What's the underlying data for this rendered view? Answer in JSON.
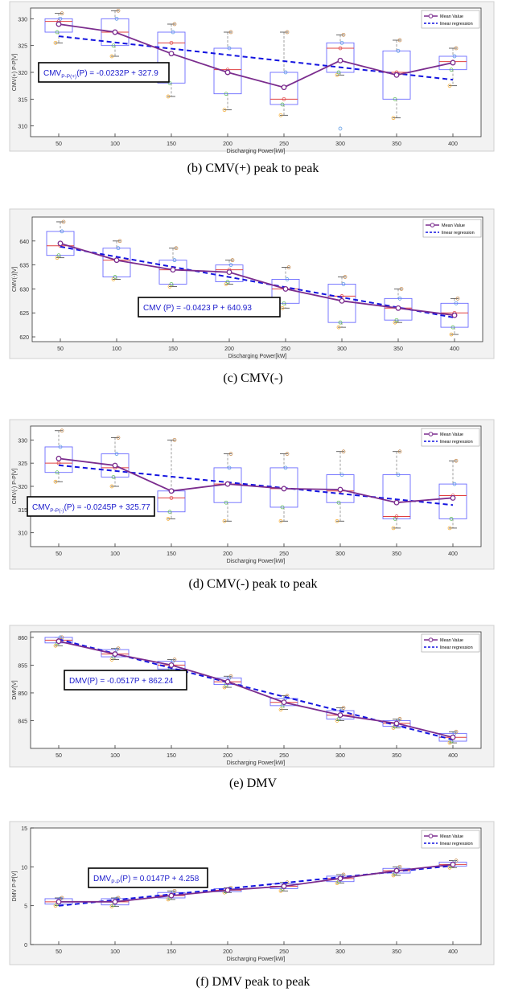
{
  "colors": {
    "mean": "#7b2d8e",
    "regression": "#1414e0",
    "box": "#6b6bff",
    "median": "#e04040",
    "frame": "#d0d0d0",
    "axis": "#333333",
    "eqbox": "#000000",
    "eqtext": "#1a1acc"
  },
  "legend": {
    "mean_label": "Mean Value",
    "regression_label": "linear regression"
  },
  "chart_data": [
    {
      "type": "box",
      "caption": "(b)  CMV(+)  peak  to  peak",
      "ylabel": "CMV(+) P-P[V]",
      "xlabel": "Discharging Power[kW]",
      "ylim": [
        308,
        332
      ],
      "yticks": [
        310,
        315,
        320,
        325,
        330
      ],
      "x": [
        50,
        100,
        150,
        200,
        250,
        300,
        350,
        400
      ],
      "mean": [
        329,
        327.5,
        323.5,
        320,
        317.2,
        322.2,
        319.5,
        321.8
      ],
      "regression": {
        "slope": -0.0232,
        "intercept": 327.9
      },
      "equation": {
        "main": "CMV",
        "sub": "P-P(+)",
        "rest": "(P) = -0.0232P + 327.9"
      },
      "boxes": [
        {
          "q1": 327.5,
          "q3": 330,
          "med": 329.5,
          "lo": 325.5,
          "hi": 331
        },
        {
          "q1": 325,
          "q3": 330,
          "med": 327.5,
          "lo": 323,
          "hi": 331.5
        },
        {
          "q1": 318,
          "q3": 327.5,
          "med": 325.5,
          "lo": 315.5,
          "hi": 329
        },
        {
          "q1": 316,
          "q3": 324.5,
          "med": 320.5,
          "lo": 313,
          "hi": 327.5
        },
        {
          "q1": 314,
          "q3": 320,
          "med": 315,
          "lo": 312,
          "hi": 327.5
        },
        {
          "q1": 320,
          "q3": 325.5,
          "med": 324.5,
          "lo": 319.5,
          "hi": 327
        },
        {
          "q1": 315,
          "q3": 324,
          "med": 320,
          "lo": 311.5,
          "hi": 326
        },
        {
          "q1": 320.5,
          "q3": 323,
          "med": 322,
          "lo": 317.5,
          "hi": 324.5
        }
      ],
      "outliers": [
        [],
        [],
        [],
        [],
        [],
        [
          309.5
        ],
        [],
        []
      ]
    },
    {
      "type": "box",
      "caption": "(c)  CMV(-)",
      "ylabel": "CMV(-)[V]",
      "xlabel": "Discharging Power[kW]",
      "ylim": [
        619,
        645
      ],
      "yticks": [
        620,
        625,
        630,
        635,
        640
      ],
      "x": [
        50,
        100,
        150,
        200,
        250,
        300,
        350,
        400
      ],
      "mean": [
        639.5,
        636,
        634,
        633.5,
        630,
        627.5,
        626,
        624.5
      ],
      "regression": {
        "slope": -0.0423,
        "intercept": 640.93
      },
      "equation": {
        "main": "CMV",
        "sub": "",
        "rest": " (P) = -0.0423 P + 640.93"
      },
      "boxes": [
        {
          "q1": 637,
          "q3": 642,
          "med": 639,
          "lo": 636.5,
          "hi": 644
        },
        {
          "q1": 632.5,
          "q3": 638.5,
          "med": 636,
          "lo": 632,
          "hi": 640
        },
        {
          "q1": 631,
          "q3": 636,
          "med": 634,
          "lo": 630.5,
          "hi": 638.5
        },
        {
          "q1": 631.5,
          "q3": 635,
          "med": 634,
          "lo": 631,
          "hi": 636
        },
        {
          "q1": 627,
          "q3": 632,
          "med": 630,
          "lo": 626,
          "hi": 634.5
        },
        {
          "q1": 623,
          "q3": 631,
          "med": 628.5,
          "lo": 622,
          "hi": 632.5
        },
        {
          "q1": 623.5,
          "q3": 628,
          "med": 626,
          "lo": 623,
          "hi": 630
        },
        {
          "q1": 622,
          "q3": 627,
          "med": 625,
          "lo": 620.5,
          "hi": 628
        }
      ],
      "outliers": [
        [],
        [],
        [],
        [],
        [],
        [],
        [],
        []
      ]
    },
    {
      "type": "box",
      "caption": "(d)  CMV(-)  peak  to  peak",
      "ylabel": "CMV(-) P-P[V]",
      "xlabel": "Discharging Power[kW]",
      "ylim": [
        307,
        333
      ],
      "yticks": [
        310,
        315,
        320,
        325,
        330
      ],
      "x": [
        50,
        100,
        150,
        200,
        250,
        300,
        350,
        400
      ],
      "mean": [
        326,
        324.5,
        319,
        320.5,
        319.5,
        319.3,
        316.5,
        317.5
      ],
      "regression": {
        "slope": -0.0245,
        "intercept": 325.77
      },
      "equation": {
        "main": "CMV",
        "sub": "P-P(-)",
        "rest": "(P) = -0.0245P + 325.77"
      },
      "boxes": [
        {
          "q1": 323,
          "q3": 328.5,
          "med": 325,
          "lo": 321,
          "hi": 332
        },
        {
          "q1": 322,
          "q3": 327,
          "med": 324,
          "lo": 320,
          "hi": 330.5
        },
        {
          "q1": 314.5,
          "q3": 319,
          "med": 317.5,
          "lo": 313,
          "hi": 330
        },
        {
          "q1": 316.5,
          "q3": 324,
          "med": 320.5,
          "lo": 312.5,
          "hi": 327
        },
        {
          "q1": 315.5,
          "q3": 324,
          "med": 319.5,
          "lo": 312.5,
          "hi": 327
        },
        {
          "q1": 316.5,
          "q3": 322.5,
          "med": 319,
          "lo": 312.5,
          "hi": 327.5
        },
        {
          "q1": 313,
          "q3": 322.5,
          "med": 313.5,
          "lo": 311,
          "hi": 327.5
        },
        {
          "q1": 313,
          "q3": 320.5,
          "med": 318,
          "lo": 311,
          "hi": 325.5
        }
      ],
      "outliers": [
        [],
        [],
        [],
        [],
        [],
        [],
        [],
        []
      ]
    },
    {
      "type": "box",
      "caption": "(e)  DMV",
      "ylabel": "DMV[V]",
      "xlabel": "Discharging Power[kW]",
      "ylim": [
        840,
        861
      ],
      "yticks": [
        845,
        850,
        855,
        860
      ],
      "x": [
        50,
        100,
        150,
        200,
        250,
        300,
        350,
        400
      ],
      "mean": [
        859.3,
        857,
        855,
        852,
        848.3,
        846,
        844.5,
        842
      ],
      "regression": {
        "slope": -0.0517,
        "intercept": 862.24
      },
      "equation": {
        "main": "DMV(P) = -0.0517P + 862.24",
        "sub": "",
        "rest": ""
      },
      "boxes": [
        {
          "q1": 859,
          "q3": 860,
          "med": 859.5,
          "lo": 858.5,
          "hi": 860
        },
        {
          "q1": 856.5,
          "q3": 857.8,
          "med": 857,
          "lo": 856,
          "hi": 858
        },
        {
          "q1": 854.3,
          "q3": 855.7,
          "med": 855,
          "lo": 853.8,
          "hi": 856
        },
        {
          "q1": 851.5,
          "q3": 852.7,
          "med": 852,
          "lo": 851,
          "hi": 853
        },
        {
          "q1": 847.7,
          "q3": 849,
          "med": 848.3,
          "lo": 847,
          "hi": 849.5
        },
        {
          "q1": 845.3,
          "q3": 846.8,
          "med": 846,
          "lo": 845,
          "hi": 847.3
        },
        {
          "q1": 844,
          "q3": 845,
          "med": 844.5,
          "lo": 843.7,
          "hi": 845.3
        },
        {
          "q1": 841.3,
          "q3": 842.7,
          "med": 842,
          "lo": 841,
          "hi": 843
        }
      ],
      "outliers": [
        [],
        [],
        [],
        [],
        [],
        [],
        [],
        []
      ]
    },
    {
      "type": "box",
      "caption": "(f)  DMV  peak  to  peak",
      "ylabel": "DMV P-P[V]",
      "xlabel": "Discharging Power[kW]",
      "ylim": [
        0,
        15
      ],
      "yticks": [
        0,
        5,
        10,
        15
      ],
      "x": [
        50,
        100,
        150,
        200,
        250,
        300,
        350,
        400
      ],
      "mean": [
        5.5,
        5.5,
        6.3,
        7,
        7.5,
        8.5,
        9.5,
        10.3
      ],
      "regression": {
        "slope": 0.0147,
        "intercept": 4.258
      },
      "equation": {
        "main": "DMV",
        "sub": "P-P",
        "rest": "(P) = 0.0147P + 4.258"
      },
      "boxes": [
        {
          "q1": 5.2,
          "q3": 5.9,
          "med": 5.5,
          "lo": 5,
          "hi": 6
        },
        {
          "q1": 5.1,
          "q3": 5.9,
          "med": 5.5,
          "lo": 4.9,
          "hi": 6
        },
        {
          "q1": 6,
          "q3": 6.7,
          "med": 6.3,
          "lo": 5.8,
          "hi": 6.9
        },
        {
          "q1": 6.8,
          "q3": 7.2,
          "med": 7,
          "lo": 6.7,
          "hi": 7.3
        },
        {
          "q1": 7.2,
          "q3": 7.8,
          "med": 7.5,
          "lo": 6.9,
          "hi": 8
        },
        {
          "q1": 8.1,
          "q3": 8.8,
          "med": 8.5,
          "lo": 7.9,
          "hi": 9
        },
        {
          "q1": 9.2,
          "q3": 9.8,
          "med": 9.5,
          "lo": 8.9,
          "hi": 10
        },
        {
          "q1": 10.1,
          "q3": 10.6,
          "med": 10.3,
          "lo": 9.9,
          "hi": 10.8
        }
      ],
      "outliers": [
        [],
        [],
        [],
        [],
        [],
        [],
        [],
        []
      ]
    }
  ]
}
